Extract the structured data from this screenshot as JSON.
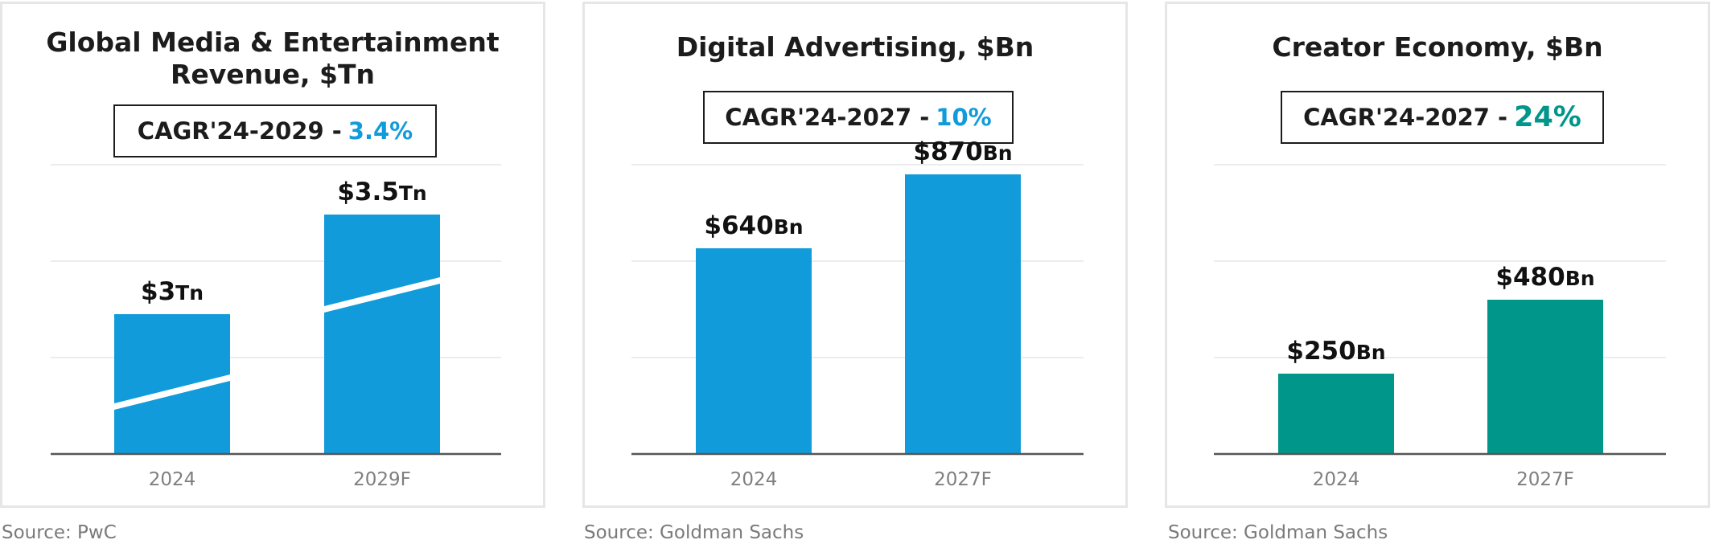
{
  "colors": {
    "blue": "#129bda",
    "teal": "#00968a",
    "axis": "#555555",
    "grid": "#ececec"
  },
  "chart_data": [
    {
      "type": "bar",
      "title": "Global Media & Entertainment Revenue, $Tn",
      "title_lines": [
        "Global Media & Entertainment",
        "Revenue, $Tn"
      ],
      "cagr_label": "CAGR'24-2029 -",
      "cagr_value": "3.4%",
      "categories": [
        "2024",
        "2029F"
      ],
      "values": [
        3,
        3.5
      ],
      "value_labels": [
        "$3Tn",
        "$3.5Tn"
      ],
      "label_amounts": [
        "$3",
        "$3.5"
      ],
      "label_units": [
        "Tn",
        "Tn"
      ],
      "axis_break": true,
      "color": "#129bda",
      "source": "Source: PwC"
    },
    {
      "type": "bar",
      "title": "Digital Advertising, $Bn",
      "title_lines": [
        "Digital Advertising, $Bn"
      ],
      "cagr_label": "CAGR'24-2027 -",
      "cagr_value": "10%",
      "categories": [
        "2024",
        "2027F"
      ],
      "values": [
        640,
        870
      ],
      "ylim": [
        0,
        900
      ],
      "value_labels": [
        "$640Bn",
        "$870Bn"
      ],
      "label_amounts": [
        "$640",
        "$870"
      ],
      "label_units": [
        "Bn",
        "Bn"
      ],
      "color": "#129bda",
      "source": "Source: Goldman Sachs"
    },
    {
      "type": "bar",
      "title": "Creator Economy, $Bn",
      "title_lines": [
        "Creator Economy, $Bn"
      ],
      "cagr_label": "CAGR'24-2027 -",
      "cagr_value": "24%",
      "categories": [
        "2024",
        "2027F"
      ],
      "values": [
        250,
        480
      ],
      "ylim": [
        0,
        900
      ],
      "value_labels": [
        "$250Bn",
        "$480Bn"
      ],
      "label_amounts": [
        "$250",
        "$480"
      ],
      "label_units": [
        "Bn",
        "Bn"
      ],
      "color": "#00968a",
      "source": "Source: Goldman Sachs"
    }
  ]
}
